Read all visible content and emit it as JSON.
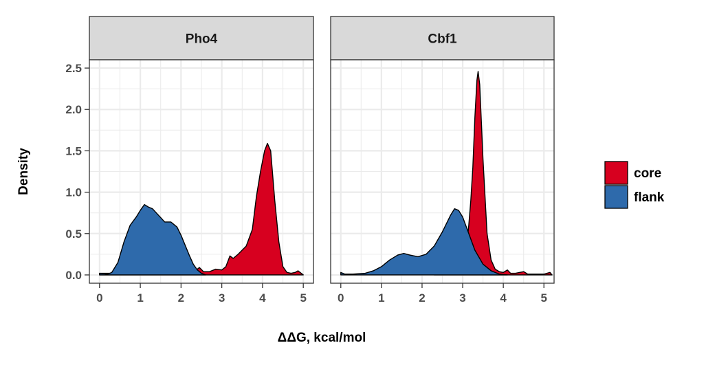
{
  "chart_data": {
    "type": "area",
    "xlabel": "ΔΔG, kcal/mol",
    "ylabel": "Density",
    "xlim": [
      -0.25,
      5.25
    ],
    "ylim": [
      -0.1,
      2.6
    ],
    "x_ticks": [
      0,
      1,
      2,
      3,
      4,
      5
    ],
    "y_ticks": [
      0.0,
      0.5,
      1.0,
      1.5,
      2.0,
      2.5
    ],
    "x_tick_labels": [
      "0",
      "1",
      "2",
      "3",
      "4",
      "5"
    ],
    "y_tick_labels": [
      "0.0",
      "0.5",
      "1.0",
      "1.5",
      "2.0",
      "2.5"
    ],
    "grid": true,
    "legend": {
      "placement": "right",
      "entries": [
        {
          "label": "core",
          "color": "#d7001f"
        },
        {
          "label": "flank",
          "color": "#2e6aab"
        }
      ]
    },
    "panels": [
      {
        "title": "Pho4",
        "series": [
          {
            "name": "core",
            "color": "#d7001f",
            "points": [
              [
                0.0,
                0.02
              ],
              [
                0.2,
                0.02
              ],
              [
                0.4,
                0.02
              ],
              [
                0.6,
                0.02
              ],
              [
                0.8,
                0.02
              ],
              [
                1.0,
                0.02
              ],
              [
                1.5,
                0.02
              ],
              [
                2.0,
                0.02
              ],
              [
                2.3,
                0.03
              ],
              [
                2.45,
                0.09
              ],
              [
                2.55,
                0.04
              ],
              [
                2.7,
                0.04
              ],
              [
                2.85,
                0.07
              ],
              [
                3.0,
                0.06
              ],
              [
                3.1,
                0.1
              ],
              [
                3.2,
                0.23
              ],
              [
                3.28,
                0.2
              ],
              [
                3.4,
                0.25
              ],
              [
                3.6,
                0.35
              ],
              [
                3.75,
                0.55
              ],
              [
                3.85,
                0.95
              ],
              [
                3.95,
                1.25
              ],
              [
                4.05,
                1.5
              ],
              [
                4.12,
                1.59
              ],
              [
                4.2,
                1.5
              ],
              [
                4.3,
                0.9
              ],
              [
                4.4,
                0.4
              ],
              [
                4.5,
                0.1
              ],
              [
                4.6,
                0.03
              ],
              [
                4.7,
                0.02
              ],
              [
                4.8,
                0.03
              ],
              [
                4.87,
                0.05
              ],
              [
                4.95,
                0.02
              ],
              [
                5.0,
                0.0
              ]
            ]
          },
          {
            "name": "flank",
            "color": "#2e6aab",
            "points": [
              [
                0.0,
                0.02
              ],
              [
                0.2,
                0.01
              ],
              [
                0.3,
                0.03
              ],
              [
                0.45,
                0.15
              ],
              [
                0.6,
                0.4
              ],
              [
                0.75,
                0.6
              ],
              [
                0.9,
                0.7
              ],
              [
                1.0,
                0.78
              ],
              [
                1.1,
                0.85
              ],
              [
                1.2,
                0.82
              ],
              [
                1.3,
                0.8
              ],
              [
                1.45,
                0.72
              ],
              [
                1.6,
                0.64
              ],
              [
                1.75,
                0.64
              ],
              [
                1.9,
                0.58
              ],
              [
                2.0,
                0.48
              ],
              [
                2.1,
                0.36
              ],
              [
                2.2,
                0.24
              ],
              [
                2.3,
                0.13
              ],
              [
                2.4,
                0.06
              ],
              [
                2.5,
                0.02
              ],
              [
                2.6,
                0.0
              ]
            ]
          }
        ]
      },
      {
        "title": "Cbf1",
        "series": [
          {
            "name": "core",
            "color": "#d7001f",
            "points": [
              [
                2.3,
                0.03
              ],
              [
                2.7,
                0.08
              ],
              [
                3.0,
                0.22
              ],
              [
                3.1,
                0.35
              ],
              [
                3.15,
                0.6
              ],
              [
                3.2,
                0.9
              ],
              [
                3.25,
                1.3
              ],
              [
                3.3,
                1.9
              ],
              [
                3.35,
                2.35
              ],
              [
                3.38,
                2.46
              ],
              [
                3.42,
                2.3
              ],
              [
                3.5,
                1.4
              ],
              [
                3.6,
                0.5
              ],
              [
                3.7,
                0.18
              ],
              [
                3.8,
                0.07
              ],
              [
                3.9,
                0.04
              ],
              [
                4.0,
                0.03
              ],
              [
                4.1,
                0.06
              ],
              [
                4.18,
                0.02
              ],
              [
                4.3,
                0.02
              ],
              [
                4.5,
                0.04
              ],
              [
                4.6,
                0.01
              ],
              [
                4.8,
                0.01
              ],
              [
                5.0,
                0.01
              ],
              [
                5.15,
                0.03
              ],
              [
                5.2,
                0.0
              ]
            ]
          },
          {
            "name": "flank",
            "color": "#2e6aab",
            "points": [
              [
                0.0,
                0.03
              ],
              [
                0.1,
                0.01
              ],
              [
                0.3,
                0.01
              ],
              [
                0.6,
                0.02
              ],
              [
                0.8,
                0.05
              ],
              [
                1.0,
                0.1
              ],
              [
                1.2,
                0.18
              ],
              [
                1.4,
                0.24
              ],
              [
                1.55,
                0.26
              ],
              [
                1.7,
                0.24
              ],
              [
                1.9,
                0.22
              ],
              [
                2.1,
                0.25
              ],
              [
                2.3,
                0.35
              ],
              [
                2.5,
                0.52
              ],
              [
                2.7,
                0.72
              ],
              [
                2.8,
                0.8
              ],
              [
                2.9,
                0.78
              ],
              [
                3.0,
                0.7
              ],
              [
                3.15,
                0.5
              ],
              [
                3.3,
                0.3
              ],
              [
                3.5,
                0.13
              ],
              [
                3.7,
                0.05
              ],
              [
                3.9,
                0.01
              ],
              [
                4.1,
                0.0
              ]
            ]
          }
        ]
      }
    ]
  }
}
